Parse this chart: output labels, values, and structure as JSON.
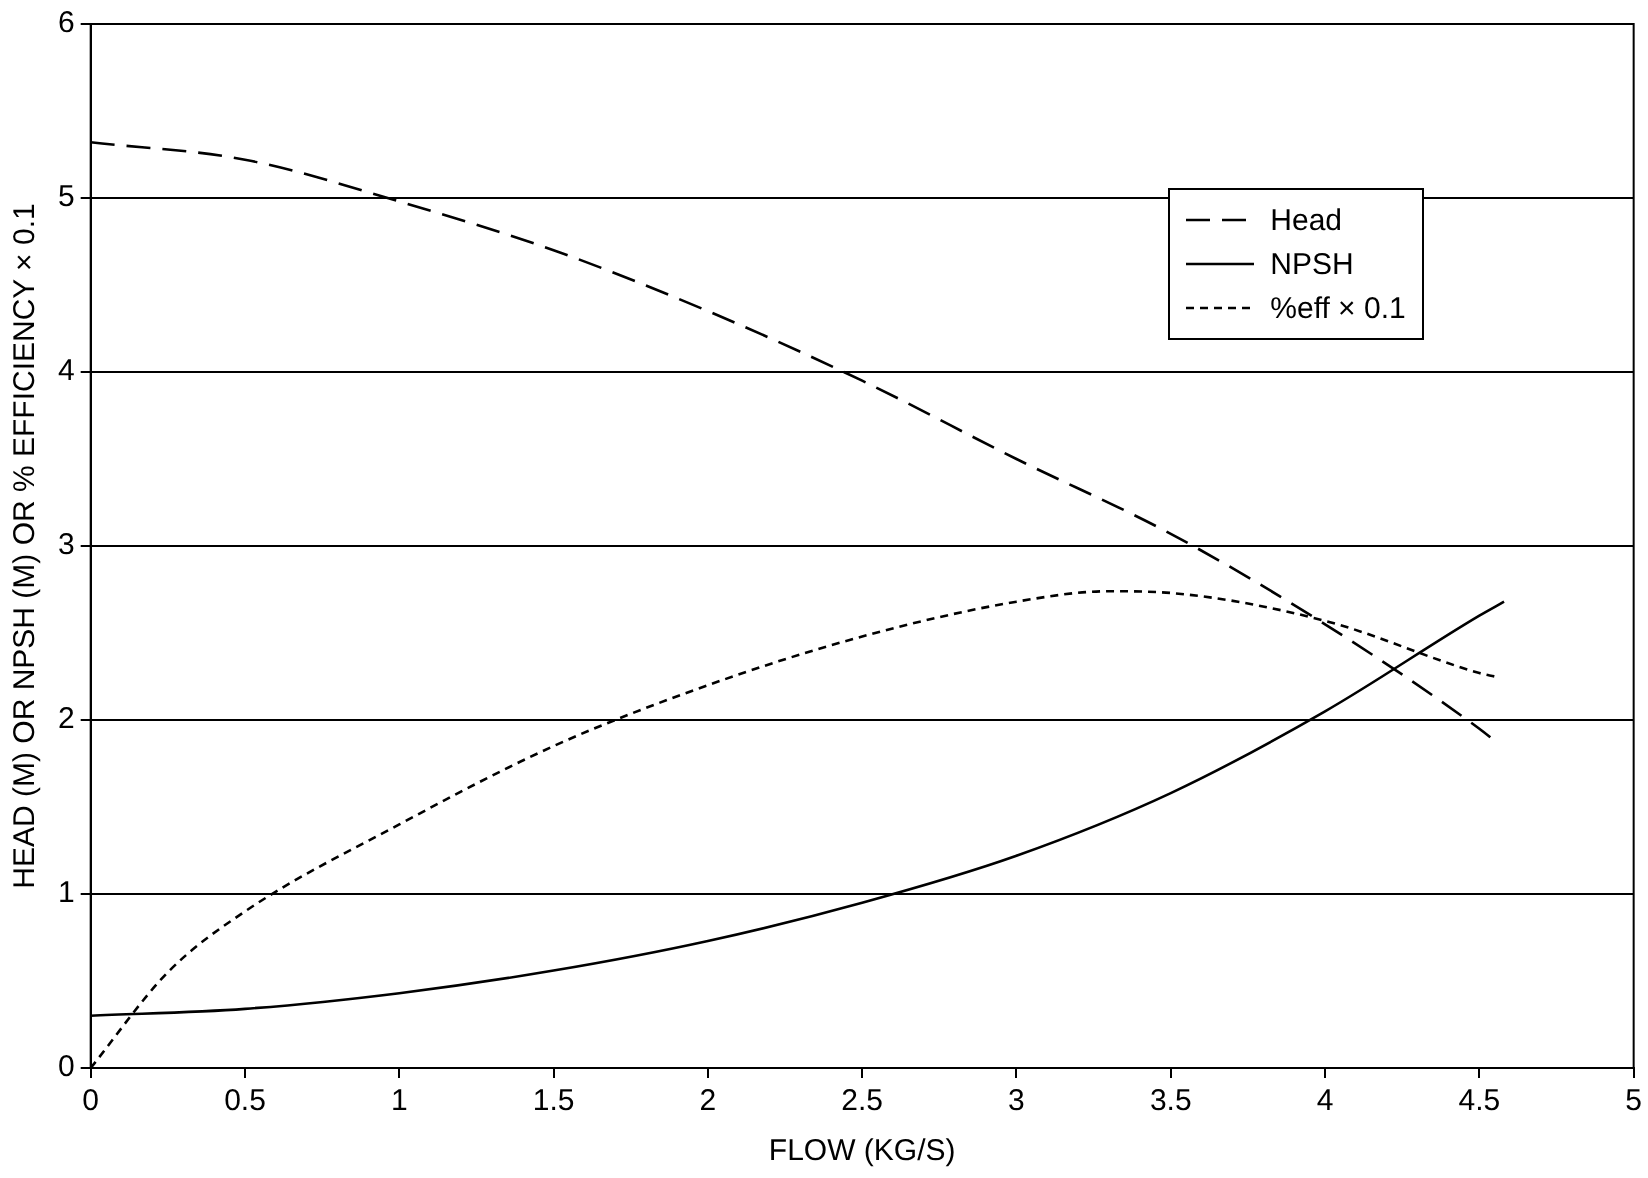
{
  "chart_data": {
    "type": "line",
    "xlabel": "FLOW (KG/S)",
    "ylabel": "HEAD (M) OR NPSH (M) OR % EFFICIENCY × 0.1",
    "xlim": [
      0,
      5
    ],
    "xticks": [
      0,
      0.5,
      1,
      1.5,
      2,
      2.5,
      3,
      3.5,
      4,
      4.5,
      5
    ],
    "ylim": [
      0,
      6
    ],
    "yticks": [
      0,
      1,
      2,
      3,
      4,
      5,
      6
    ],
    "grid": "y",
    "legend": "top right",
    "marker": "none",
    "series": [
      {
        "name": "Head",
        "color": "#000000",
        "line_style": "dashed",
        "x": [
          0,
          0.5,
          1,
          1.5,
          2,
          2.5,
          3,
          3.5,
          4,
          4.5,
          4.55
        ],
        "values": [
          5.32,
          5.22,
          4.98,
          4.7,
          4.35,
          3.95,
          3.5,
          3.07,
          2.55,
          1.95,
          1.88
        ]
      },
      {
        "name": "NPSH",
        "color": "#000000",
        "line_style": "solid",
        "x": [
          0,
          0.5,
          1,
          1.5,
          2,
          2.5,
          3,
          3.5,
          4,
          4.5,
          4.58
        ],
        "values": [
          0.3,
          0.34,
          0.43,
          0.56,
          0.73,
          0.95,
          1.22,
          1.58,
          2.05,
          2.6,
          2.68
        ]
      },
      {
        "name": "%eff × 0.1",
        "color": "#000000",
        "line_style": "dotted",
        "x": [
          0,
          0.25,
          0.5,
          1,
          1.5,
          2,
          2.5,
          3,
          3.3,
          3.5,
          4,
          4.5,
          4.55
        ],
        "values": [
          0,
          0.55,
          0.9,
          1.4,
          1.85,
          2.2,
          2.48,
          2.68,
          2.74,
          2.73,
          2.57,
          2.27,
          2.25
        ]
      }
    ]
  }
}
